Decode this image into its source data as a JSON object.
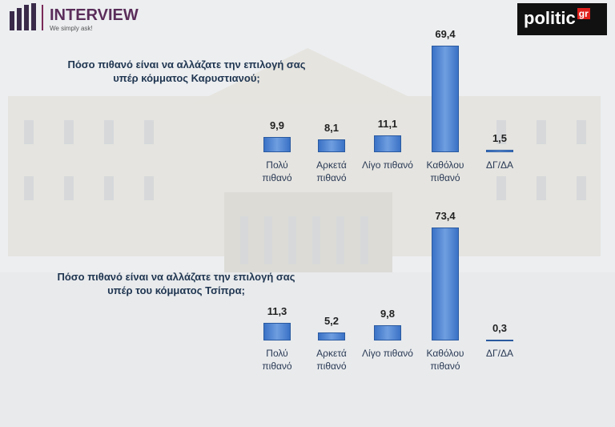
{
  "header": {
    "left_logo": "INTERVIEW",
    "left_tagline": "We simply ask!",
    "right_logo": "politic",
    "right_logo_suffix": "gr"
  },
  "chart_data": [
    {
      "type": "bar",
      "title": "Πόσο πιθανό είναι να αλλάζατε την επιλογή σας υπέρ κόμματος Καρυστιανού;",
      "categories": [
        "Πολύ πιθανό",
        "Αρκετά πιθανό",
        "Λίγο πιθανό",
        "Καθόλου πιθανό",
        "ΔΓ/ΔΑ"
      ],
      "values": [
        9.9,
        8.1,
        11.1,
        69.4,
        1.5
      ],
      "value_labels": [
        "9,9",
        "8,1",
        "11,1",
        "69,4",
        "1,5"
      ],
      "color": "#3b72c6"
    },
    {
      "type": "bar",
      "title": "Πόσο πιθανό είναι να αλλάζατε την επιλογή σας υπέρ του κόμματος Τσίπρα;",
      "categories": [
        "Πολύ πιθανό",
        "Αρκετά πιθανό",
        "Λίγο πιθανό",
        "Καθόλου πιθανό",
        "ΔΓ/ΔΑ"
      ],
      "values": [
        11.3,
        5.2,
        9.8,
        73.4,
        0.3
      ],
      "value_labels": [
        "11,3",
        "5,2",
        "9,8",
        "73,4",
        "0,3"
      ],
      "color": "#3b72c6"
    }
  ]
}
